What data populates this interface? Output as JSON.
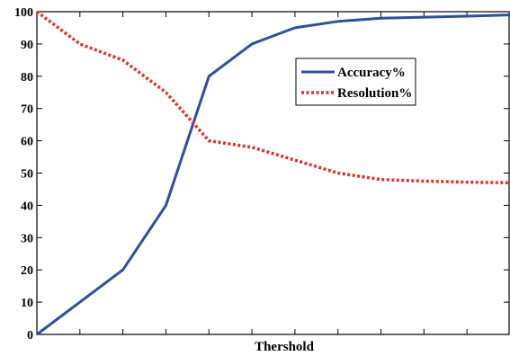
{
  "chart_data": {
    "type": "line",
    "title": "",
    "xlabel": "Thershold",
    "ylabel": "",
    "ylim": [
      0,
      100
    ],
    "yticks": [
      0,
      10,
      20,
      30,
      40,
      50,
      60,
      70,
      80,
      90,
      100
    ],
    "xlim": [
      0,
      11
    ],
    "grid": false,
    "legend_position": "top-right",
    "x": [
      0,
      1,
      2,
      3,
      4,
      5,
      6,
      7,
      8,
      9,
      10,
      11
    ],
    "series": [
      {
        "name": "Accuracy%",
        "color": "#2e4fa0",
        "style": "solid",
        "values": [
          0,
          10,
          20,
          40,
          80,
          90,
          95,
          97,
          98,
          98.3,
          98.6,
          99
        ]
      },
      {
        "name": "Resolution%",
        "color": "#e8302a",
        "style": "dotted",
        "values": [
          100,
          90,
          85,
          75,
          60,
          58,
          54,
          50,
          48,
          47.5,
          47.2,
          47
        ]
      }
    ]
  }
}
